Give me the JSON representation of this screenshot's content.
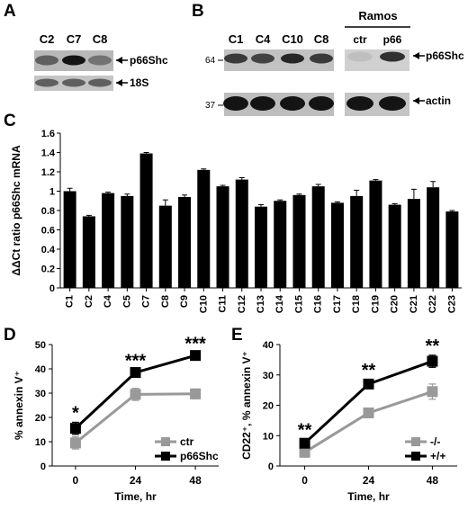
{
  "panels": {
    "A": {
      "letter": "A",
      "lanes": [
        "C2",
        "C7",
        "C8"
      ],
      "bands": [
        {
          "label": "p66Shc",
          "intensity": [
            0.55,
            0.95,
            0.45
          ]
        },
        {
          "label": "18S",
          "intensity": [
            0.55,
            0.55,
            0.55
          ]
        }
      ]
    },
    "B": {
      "letter": "B",
      "lanes": [
        "C1",
        "C4",
        "C10",
        "C8"
      ],
      "mw_markers": [
        "64",
        "37"
      ],
      "bands": [
        {
          "label": "p66Shc",
          "intensity": [
            0.75,
            0.7,
            0.85,
            0.75
          ]
        },
        {
          "label": "actin",
          "intensity": [
            0.95,
            0.95,
            0.95,
            0.95
          ]
        }
      ],
      "ramos": {
        "title": "Ramos",
        "lanes": [
          "ctr",
          "p66"
        ],
        "p66_intensity": [
          0.05,
          0.8
        ],
        "actin_intensity": [
          0.95,
          0.95
        ]
      }
    },
    "C": {
      "letter": "C"
    },
    "D": {
      "letter": "D"
    },
    "E": {
      "letter": "E"
    }
  },
  "chart_data": [
    {
      "id": "C",
      "type": "bar",
      "ylabel": "ΔΔCt ratio p66Shc mRNA",
      "ylim": [
        0,
        1.6
      ],
      "yticks": [
        "0",
        "0.2",
        "0.4",
        "0.6",
        "0.8",
        "1",
        "1.2",
        "1.4",
        "1.6"
      ],
      "categories": [
        "C1",
        "C2",
        "C4",
        "C5",
        "C7",
        "C8",
        "C9",
        "C10",
        "C11",
        "C12",
        "C13",
        "C14",
        "C15",
        "C16",
        "C17",
        "C18",
        "C19",
        "C20",
        "C21",
        "C22",
        "C23"
      ],
      "values": [
        1.0,
        0.74,
        0.98,
        0.95,
        1.39,
        0.85,
        0.94,
        1.22,
        1.05,
        1.12,
        0.84,
        0.9,
        0.96,
        1.05,
        0.88,
        0.95,
        1.11,
        0.86,
        0.92,
        1.04,
        0.79
      ],
      "errors": [
        0.03,
        0.01,
        0.01,
        0.02,
        0.01,
        0.06,
        0.02,
        0.01,
        0.01,
        0.02,
        0.02,
        0.01,
        0.01,
        0.02,
        0.01,
        0.06,
        0.01,
        0.01,
        0.1,
        0.06,
        0.01
      ],
      "color": "#000000",
      "grid": false
    },
    {
      "id": "D",
      "type": "line",
      "xlabel": "Time, hr",
      "ylabel": "% annexin V⁺",
      "x": [
        0,
        24,
        48
      ],
      "xticks": [
        "0",
        "24",
        "48"
      ],
      "ylim": [
        0,
        50
      ],
      "yticks": [
        "0",
        "10",
        "20",
        "30",
        "40",
        "50"
      ],
      "series": [
        {
          "name": "ctr",
          "color": "#999999",
          "values": [
            9.5,
            29.5,
            29.7
          ],
          "errors": [
            2.5,
            2.5,
            2.0
          ]
        },
        {
          "name": "p66Shc",
          "color": "#000000",
          "values": [
            15.5,
            38.5,
            45.5
          ],
          "errors": [
            2.5,
            1.0,
            1.0
          ]
        }
      ],
      "annotations": [
        "*",
        "***",
        "***"
      ],
      "legend": "bottom-right",
      "grid": false
    },
    {
      "id": "E",
      "type": "line",
      "xlabel": "Time, hr",
      "ylabel": "CD22⁺, % annexin V⁺",
      "x": [
        0,
        24,
        48
      ],
      "xticks": [
        "0",
        "24",
        "48"
      ],
      "ylim": [
        0,
        40
      ],
      "yticks": [
        "0",
        "10",
        "20",
        "30",
        "40"
      ],
      "series": [
        {
          "name": "-/-",
          "color": "#999999",
          "values": [
            4.5,
            17.5,
            24.5
          ],
          "errors": [
            1.0,
            1.5,
            2.5
          ]
        },
        {
          "name": "+/+",
          "color": "#000000",
          "values": [
            7.5,
            27.0,
            34.5
          ],
          "errors": [
            1.2,
            1.5,
            2.0
          ]
        }
      ],
      "annotations": [
        "**",
        "**",
        "**"
      ],
      "legend": "bottom-right",
      "grid": false
    }
  ]
}
